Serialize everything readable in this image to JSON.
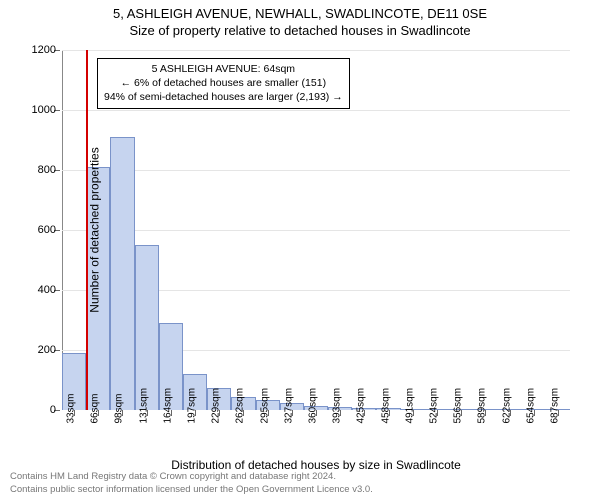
{
  "titles": {
    "main": "5, ASHLEIGH AVENUE, NEWHALL, SWADLINCOTE, DE11 0SE",
    "sub": "Size of property relative to detached houses in Swadlincote"
  },
  "axes": {
    "ylabel": "Number of detached properties",
    "xlabel": "Distribution of detached houses by size in Swadlincote",
    "ylim": [
      0,
      1200
    ],
    "ytick_step": 200,
    "label_fontsize": 12,
    "tick_fontsize": 11
  },
  "chart": {
    "type": "bar",
    "bar_fill": "#c6d4ef",
    "bar_stroke": "#7a93c9",
    "bar_width_ratio": 1.0,
    "grid_color": "#e5e5e5",
    "background_color": "#ffffff",
    "categories": [
      "33sqm",
      "66sqm",
      "98sqm",
      "131sqm",
      "164sqm",
      "197sqm",
      "229sqm",
      "262sqm",
      "295sqm",
      "327sqm",
      "360sqm",
      "393sqm",
      "425sqm",
      "458sqm",
      "491sqm",
      "524sqm",
      "556sqm",
      "589sqm",
      "622sqm",
      "654sqm",
      "687sqm"
    ],
    "values": [
      190,
      810,
      910,
      550,
      290,
      120,
      75,
      45,
      35,
      25,
      15,
      10,
      8,
      6,
      5,
      4,
      3,
      2,
      2,
      1,
      1
    ]
  },
  "marker": {
    "color": "#d40000",
    "bin_index": 1
  },
  "annotation": {
    "lines": [
      "5 ASHLEIGH AVENUE: 64sqm",
      "← 6% of detached houses are smaller (151)",
      "94% of semi-detached houses are larger (2,193) →"
    ],
    "border_color": "#000000",
    "fontsize": 10.5
  },
  "footer": {
    "line1": "Contains HM Land Registry data © Crown copyright and database right 2024.",
    "line2": "Contains public sector information licensed under the Open Government Licence v3.0.",
    "color": "#777777"
  }
}
